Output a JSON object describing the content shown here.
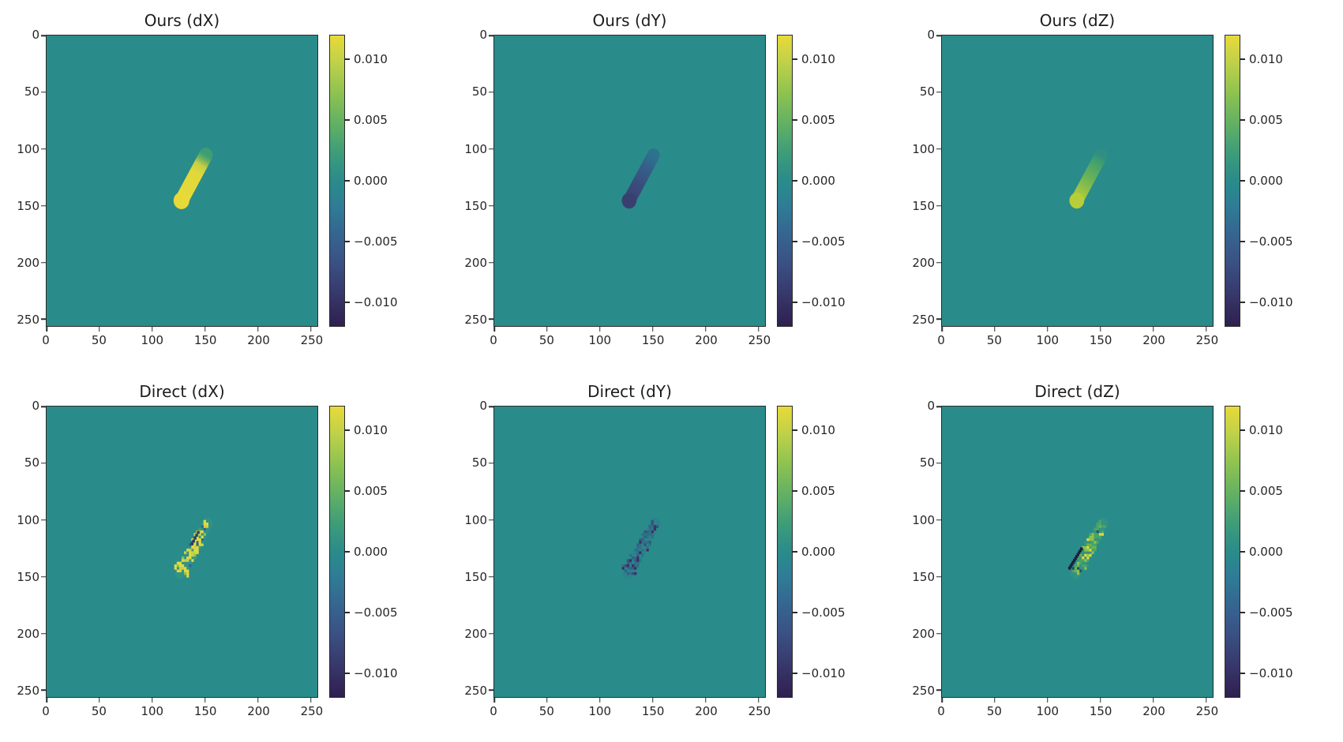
{
  "figure": {
    "description": "2x3 grid of matplotlib heatmap (imshow) panels comparing Ours vs Direct displacement fields, each with its own viridis colorbar",
    "background": "#ffffff",
    "heatmap_background": "#2a8b8b",
    "axis_color": "#2b2b2b",
    "text_color": "#262626",
    "colormap_name": "viridis",
    "colorbar_gradient": [
      {
        "color": "#e8da39",
        "at": 0
      },
      {
        "color": "#bcd04a",
        "at": 10
      },
      {
        "color": "#8dc250",
        "at": 20
      },
      {
        "color": "#63b163",
        "at": 30
      },
      {
        "color": "#3f9d78",
        "at": 40
      },
      {
        "color": "#2a8b8b",
        "at": 50
      },
      {
        "color": "#2e7e95",
        "at": 58
      },
      {
        "color": "#356691",
        "at": 68
      },
      {
        "color": "#3a5184",
        "at": 78
      },
      {
        "color": "#383a6e",
        "at": 88
      },
      {
        "color": "#332a5b",
        "at": 95
      },
      {
        "color": "#2e2051",
        "at": 100
      }
    ]
  },
  "chart_data": [
    {
      "type": "heatmap",
      "title": "Ours (dX)",
      "axes": {
        "x_range": [
          0,
          255
        ],
        "y_range": [
          0,
          255
        ],
        "x_ticks": [
          {
            "label": "0",
            "v": 0
          },
          {
            "label": "50",
            "v": 50
          },
          {
            "label": "100",
            "v": 100
          },
          {
            "label": "150",
            "v": 150
          },
          {
            "label": "200",
            "v": 200
          },
          {
            "label": "250",
            "v": 250
          }
        ],
        "y_ticks": [
          {
            "label": "0",
            "v": 0
          },
          {
            "label": "50",
            "v": 50
          },
          {
            "label": "100",
            "v": 100
          },
          {
            "label": "150",
            "v": 150
          },
          {
            "label": "200",
            "v": 200
          },
          {
            "label": "250",
            "v": 250
          }
        ]
      },
      "colorbar": {
        "vmin": -0.012,
        "vmax": 0.012,
        "ticks": [
          {
            "label": "0.010",
            "v": 0.01
          },
          {
            "label": "0.005",
            "v": 0.005
          },
          {
            "label": "0.000",
            "v": 0.0
          },
          {
            "label": "−0.005",
            "v": -0.005
          },
          {
            "label": "−0.010",
            "v": -0.01
          }
        ]
      },
      "field": {
        "background_value": 0.0,
        "render": "smooth",
        "approx_values": "diagonal streak ~ +0.011 (bright yellow), green fade at upper tip",
        "streak": {
          "from": [
            127.5,
            145.5
          ],
          "to": [
            150.5,
            105.5
          ],
          "width": 13,
          "foot_radius": 7.5,
          "foot_color": "#e7da38",
          "gradient": [
            {
              "at": 0,
              "color": "#3e9e73"
            },
            {
              "at": 0.09,
              "color": "#6cb15b"
            },
            {
              "at": 0.22,
              "color": "#c8d044"
            },
            {
              "at": 0.4,
              "color": "#e2d83b"
            },
            {
              "at": 1,
              "color": "#e7da38"
            }
          ]
        }
      }
    },
    {
      "type": "heatmap",
      "title": "Ours (dY)",
      "axes": {
        "x_range": [
          0,
          255
        ],
        "y_range": [
          0,
          255
        ],
        "x_ticks": [
          {
            "label": "0",
            "v": 0
          },
          {
            "label": "50",
            "v": 50
          },
          {
            "label": "100",
            "v": 100
          },
          {
            "label": "150",
            "v": 150
          },
          {
            "label": "200",
            "v": 200
          },
          {
            "label": "250",
            "v": 250
          }
        ],
        "y_ticks": [
          {
            "label": "0",
            "v": 0
          },
          {
            "label": "50",
            "v": 50
          },
          {
            "label": "100",
            "v": 100
          },
          {
            "label": "150",
            "v": 150
          },
          {
            "label": "200",
            "v": 200
          },
          {
            "label": "250",
            "v": 250
          }
        ]
      },
      "colorbar": {
        "vmin": -0.012,
        "vmax": 0.012,
        "ticks": [
          {
            "label": "0.010",
            "v": 0.01
          },
          {
            "label": "0.005",
            "v": 0.005
          },
          {
            "label": "0.000",
            "v": 0.0
          },
          {
            "label": "−0.005",
            "v": -0.005
          },
          {
            "label": "−0.010",
            "v": -0.01
          }
        ]
      },
      "field": {
        "background_value": 0.0,
        "render": "smooth",
        "approx_values": "diagonal streak ~ −0.003 at tip to −0.007 at foot (dark blue)",
        "streak": {
          "from": [
            127.5,
            145.5
          ],
          "to": [
            150.5,
            105.5
          ],
          "width": 12,
          "foot_radius": 7,
          "foot_color": "#394070",
          "gradient": [
            {
              "at": 0,
              "color": "#2d7390"
            },
            {
              "at": 0.3,
              "color": "#355f88"
            },
            {
              "at": 0.7,
              "color": "#3a4a7b"
            },
            {
              "at": 1,
              "color": "#3b4274"
            }
          ]
        }
      }
    },
    {
      "type": "heatmap",
      "title": "Ours (dZ)",
      "axes": {
        "x_range": [
          0,
          255
        ],
        "y_range": [
          0,
          255
        ],
        "x_ticks": [
          {
            "label": "0",
            "v": 0
          },
          {
            "label": "50",
            "v": 50
          },
          {
            "label": "100",
            "v": 100
          },
          {
            "label": "150",
            "v": 150
          },
          {
            "label": "200",
            "v": 200
          },
          {
            "label": "250",
            "v": 250
          }
        ],
        "y_ticks": [
          {
            "label": "0",
            "v": 0
          },
          {
            "label": "50",
            "v": 50
          },
          {
            "label": "100",
            "v": 100
          },
          {
            "label": "150",
            "v": 150
          },
          {
            "label": "200",
            "v": 200
          },
          {
            "label": "250",
            "v": 250
          }
        ]
      },
      "colorbar": {
        "vmin": -0.012,
        "vmax": 0.012,
        "ticks": [
          {
            "label": "0.010",
            "v": 0.01
          },
          {
            "label": "0.005",
            "v": 0.005
          },
          {
            "label": "0.000",
            "v": 0.0
          },
          {
            "label": "−0.005",
            "v": -0.005
          },
          {
            "label": "−0.010",
            "v": -0.01
          }
        ]
      },
      "field": {
        "background_value": 0.0,
        "render": "smooth",
        "approx_values": "diagonal streak ~ +0.003 at tip to +0.008 at foot (green to yellow-green)",
        "streak": {
          "from": [
            127.5,
            145.5
          ],
          "to": [
            150.5,
            105.5
          ],
          "width": 12,
          "foot_radius": 7,
          "foot_color": "#b7cd39",
          "gradient": [
            {
              "at": 0,
              "color": "#318e82"
            },
            {
              "at": 0.18,
              "color": "#44a26b"
            },
            {
              "at": 0.5,
              "color": "#6bb258"
            },
            {
              "at": 0.8,
              "color": "#9cc543"
            },
            {
              "at": 1,
              "color": "#b3cc3b"
            }
          ]
        }
      }
    },
    {
      "type": "heatmap",
      "title": "Direct (dX)",
      "axes": {
        "x_range": [
          0,
          255
        ],
        "y_range": [
          0,
          255
        ],
        "x_ticks": [
          {
            "label": "0",
            "v": 0
          },
          {
            "label": "50",
            "v": 50
          },
          {
            "label": "100",
            "v": 100
          },
          {
            "label": "150",
            "v": 150
          },
          {
            "label": "200",
            "v": 200
          },
          {
            "label": "250",
            "v": 250
          }
        ],
        "y_ticks": [
          {
            "label": "0",
            "v": 0
          },
          {
            "label": "50",
            "v": 50
          },
          {
            "label": "100",
            "v": 100
          },
          {
            "label": "150",
            "v": 150
          },
          {
            "label": "200",
            "v": 200
          },
          {
            "label": "250",
            "v": 250
          }
        ]
      },
      "colorbar": {
        "vmin": -0.012,
        "vmax": 0.012,
        "ticks": [
          {
            "label": "0.010",
            "v": 0.01
          },
          {
            "label": "0.005",
            "v": 0.005
          },
          {
            "label": "0.000",
            "v": 0.0
          },
          {
            "label": "−0.005",
            "v": -0.005
          },
          {
            "label": "−0.010",
            "v": -0.01
          }
        ]
      },
      "field": {
        "background_value": 0.0,
        "render": "speckled",
        "approx_values": "noisy checkered streak, mostly ~ +0.011 (yellow) with a few ~ −0.006 specks",
        "streak": {
          "from": [
            126.5,
            147
          ],
          "to": [
            152,
            103
          ]
        },
        "haze": {
          "color": "#3a9b84",
          "opacity": 0.45,
          "width": 10
        },
        "speckle": {
          "seed": 11,
          "count": 150,
          "hw0": 7,
          "hw1": 4,
          "snap": 2.3,
          "size": 2.4,
          "palette": [
            {
              "color": "#e4da3c",
              "w": 0.6
            },
            {
              "color": "#ccd243",
              "w": 0.14
            },
            {
              "color": "#93c14c",
              "w": 0.08
            },
            {
              "color": "#3f9d74",
              "w": 0.06
            },
            {
              "color": "#33658c",
              "w": 0.06
            },
            {
              "color": "#2c3a66",
              "w": 0.06
            }
          ]
        },
        "dark_strip": {
          "t0": 0.55,
          "t1": 0.78,
          "edge": false,
          "offset": -3.5,
          "color": "#2c3a66",
          "n": 5
        }
      }
    },
    {
      "type": "heatmap",
      "title": "Direct (dY)",
      "axes": {
        "x_range": [
          0,
          255
        ],
        "y_range": [
          0,
          255
        ],
        "x_ticks": [
          {
            "label": "0",
            "v": 0
          },
          {
            "label": "50",
            "v": 50
          },
          {
            "label": "100",
            "v": 100
          },
          {
            "label": "150",
            "v": 150
          },
          {
            "label": "200",
            "v": 200
          },
          {
            "label": "250",
            "v": 250
          }
        ],
        "y_ticks": [
          {
            "label": "0",
            "v": 0
          },
          {
            "label": "50",
            "v": 50
          },
          {
            "label": "100",
            "v": 100
          },
          {
            "label": "150",
            "v": 150
          },
          {
            "label": "200",
            "v": 200
          },
          {
            "label": "250",
            "v": 250
          }
        ]
      },
      "colorbar": {
        "vmin": -0.012,
        "vmax": 0.012,
        "ticks": [
          {
            "label": "0.010",
            "v": 0.01
          },
          {
            "label": "0.005",
            "v": 0.005
          },
          {
            "label": "0.000",
            "v": 0.0
          },
          {
            "label": "−0.005",
            "v": -0.005
          },
          {
            "label": "−0.010",
            "v": -0.01
          }
        ]
      },
      "field": {
        "background_value": 0.0,
        "render": "speckled",
        "approx_values": "faint noisy streak, ~ −0.002 to −0.009 (dark blue) with sparse purple specks",
        "streak": {
          "from": [
            126.5,
            147
          ],
          "to": [
            152,
            103
          ]
        },
        "haze": {
          "color": "#2c7d8e",
          "opacity": 0.5,
          "width": 10
        },
        "speckle": {
          "seed": 23,
          "count": 120,
          "hw0": 7,
          "hw1": 4,
          "snap": 2.3,
          "size": 2.4,
          "palette": [
            {
              "color": "#2d7186",
              "w": 0.4
            },
            {
              "color": "#326184",
              "w": 0.22
            },
            {
              "color": "#3b4f7c",
              "w": 0.16
            },
            {
              "color": "#452a63",
              "w": 0.12
            },
            {
              "color": "#2a8389",
              "w": 0.1
            }
          ]
        },
        "dark_strip": null
      }
    },
    {
      "type": "heatmap",
      "title": "Direct (dZ)",
      "axes": {
        "x_range": [
          0,
          255
        ],
        "y_range": [
          0,
          255
        ],
        "x_ticks": [
          {
            "label": "0",
            "v": 0
          },
          {
            "label": "50",
            "v": 50
          },
          {
            "label": "100",
            "v": 100
          },
          {
            "label": "150",
            "v": 150
          },
          {
            "label": "200",
            "v": 200
          },
          {
            "label": "250",
            "v": 250
          }
        ],
        "y_ticks": [
          {
            "label": "0",
            "v": 0
          },
          {
            "label": "50",
            "v": 50
          },
          {
            "label": "100",
            "v": 100
          },
          {
            "label": "150",
            "v": 150
          },
          {
            "label": "200",
            "v": 200
          },
          {
            "label": "250",
            "v": 250
          }
        ]
      },
      "colorbar": {
        "vmin": -0.012,
        "vmax": 0.012,
        "ticks": [
          {
            "label": "0.010",
            "v": 0.01
          },
          {
            "label": "0.005",
            "v": 0.005
          },
          {
            "label": "0.000",
            "v": 0.0
          },
          {
            "label": "−0.005",
            "v": -0.005
          },
          {
            "label": "−0.010",
            "v": -0.01
          }
        ]
      },
      "field": {
        "background_value": 0.0,
        "render": "speckled",
        "approx_values": "noisy green/yellow streak ~ +0.004 to +0.012 with dark ~ −0.012 edge on lower-left flank",
        "streak": {
          "from": [
            126.5,
            147
          ],
          "to": [
            152,
            103
          ]
        },
        "haze": {
          "color": "#3b9a7f",
          "opacity": 0.45,
          "width": 10
        },
        "speckle": {
          "seed": 37,
          "count": 150,
          "hw0": 7,
          "hw1": 4,
          "snap": 2.3,
          "size": 2.4,
          "palette": [
            {
              "color": "#4aa565",
              "w": 0.36
            },
            {
              "color": "#6db353",
              "w": 0.18
            },
            {
              "color": "#8ec24a",
              "w": 0.14
            },
            {
              "color": "#e2d93c",
              "w": 0.16
            },
            {
              "color": "#359481",
              "w": 0.1
            },
            {
              "color": "#2b4a72",
              "w": 0.06
            }
          ]
        },
        "dark_strip": {
          "t0": 0.02,
          "t1": 0.42,
          "edge": true,
          "offset": 0,
          "color": "#201d3f",
          "n": 11
        }
      }
    }
  ]
}
